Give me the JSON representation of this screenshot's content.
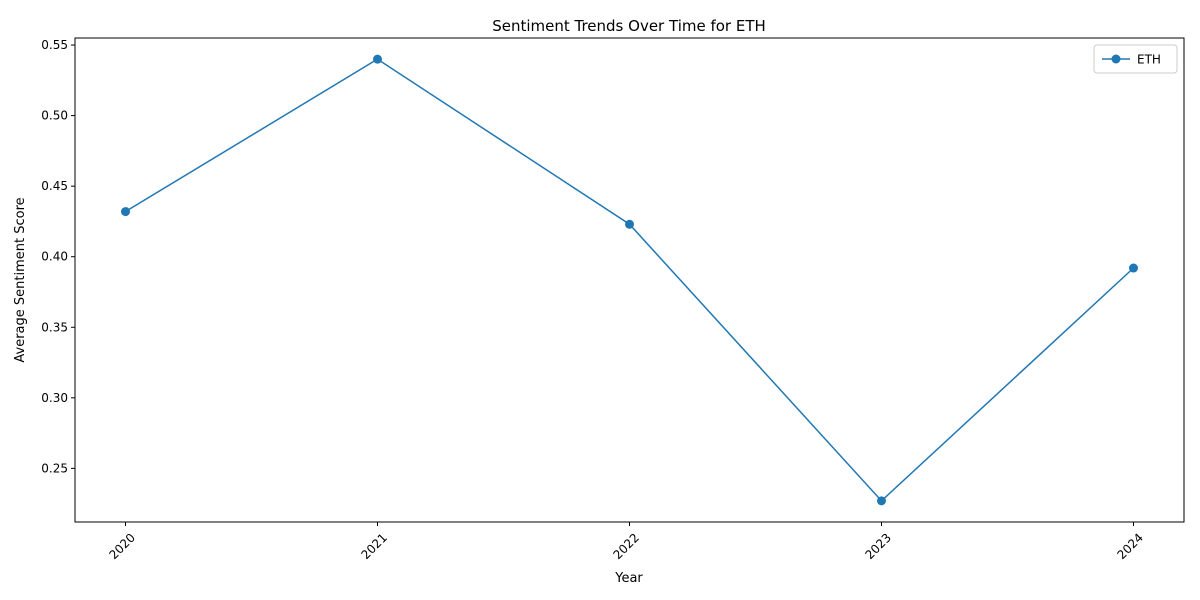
{
  "chart_data": {
    "type": "line",
    "title": "Sentiment Trends Over Time for ETH",
    "xlabel": "Year",
    "ylabel": "Average Sentiment Score",
    "categories": [
      "2020",
      "2021",
      "2022",
      "2023",
      "2024"
    ],
    "series": [
      {
        "name": "ETH",
        "values": [
          0.432,
          0.54,
          0.423,
          0.227,
          0.392
        ],
        "color": "#1f77b4",
        "marker": "circle"
      }
    ],
    "ylim": [
      0.212,
      0.555
    ],
    "yticks": [
      0.25,
      0.3,
      0.35,
      0.4,
      0.45,
      0.5,
      0.55
    ],
    "ytick_labels": [
      "0.25",
      "0.30",
      "0.35",
      "0.40",
      "0.45",
      "0.50",
      "0.55"
    ],
    "xtick_rotation": "45 degrees",
    "grid": false,
    "legend_position": "top-right"
  }
}
